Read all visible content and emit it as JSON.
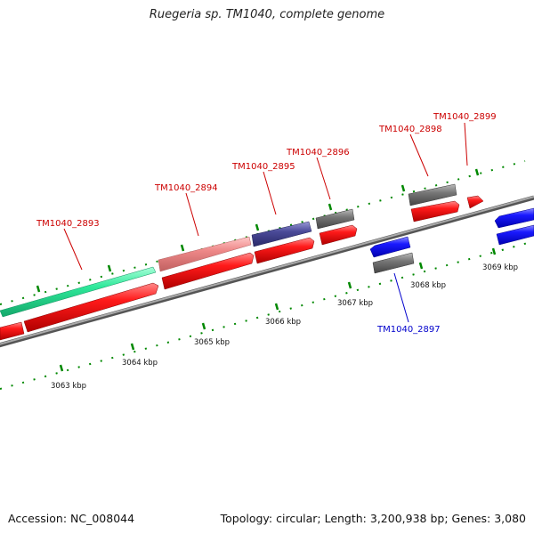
{
  "title": "Ruegeria sp. TM1040, complete genome",
  "footer": {
    "accession": "Accession: NC_008044",
    "topology": "Topology: circular; Length: 3,200,938 bp; Genes: 3,080"
  },
  "colors": {
    "gene_label_forward": "#cc0000",
    "gene_label_reverse": "#0000cc",
    "cds": "#ff0000",
    "backbone": "#888888",
    "tick_green": "#008800"
  },
  "position_labels": [
    "3063 kbp",
    "3064 kbp",
    "3065 kbp",
    "3066 kbp",
    "3067 kbp",
    "3068 kbp",
    "3069 kbp"
  ],
  "gene_labels": [
    {
      "name": "TM1040_2893",
      "strand": "forward"
    },
    {
      "name": "TM1040_2894",
      "strand": "forward"
    },
    {
      "name": "TM1040_2895",
      "strand": "forward"
    },
    {
      "name": "TM1040_2896",
      "strand": "forward"
    },
    {
      "name": "TM1040_2898",
      "strand": "forward"
    },
    {
      "name": "TM1040_2899",
      "strand": "forward"
    },
    {
      "name": "TM1040_2897",
      "strand": "reverse"
    }
  ],
  "features": [
    {
      "type": "gene-bar",
      "color": "#2ee89a",
      "track": "outer-forward"
    },
    {
      "type": "gene-bar",
      "color": "#ee8888",
      "track": "outer-forward"
    },
    {
      "type": "gene-bar",
      "color": "#444488",
      "track": "outer-forward"
    },
    {
      "type": "gene-bar",
      "color": "#777777",
      "track": "outer-forward"
    },
    {
      "type": "gene-bar",
      "color": "#777777",
      "track": "outer-forward"
    },
    {
      "type": "cds-arrow",
      "color": "#ff0000",
      "track": "inner-forward"
    },
    {
      "type": "gene-bar",
      "color": "#777777",
      "track": "outer-reverse"
    },
    {
      "type": "cds-arrow",
      "color": "#0000ff",
      "track": "inner-reverse"
    }
  ]
}
